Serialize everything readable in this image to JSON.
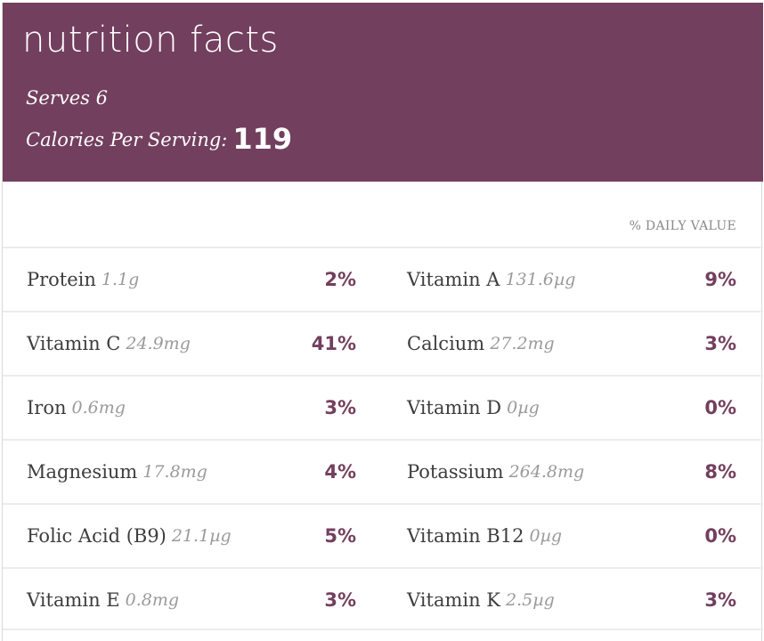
{
  "header": {
    "title": "nutrition facts",
    "serves": "Serves 6",
    "calories_label": "Calories Per Serving:",
    "calories_value": "119"
  },
  "daily_value_label": "% DAILY VALUE",
  "rows": [
    {
      "left": {
        "name": "Protein",
        "amount": "1.1g",
        "pct": "2%"
      },
      "right": {
        "name": "Vitamin A",
        "amount": "131.6µg",
        "pct": "9%"
      }
    },
    {
      "left": {
        "name": "Vitamin C",
        "amount": "24.9mg",
        "pct": "41%"
      },
      "right": {
        "name": "Calcium",
        "amount": "27.2mg",
        "pct": "3%"
      }
    },
    {
      "left": {
        "name": "Iron",
        "amount": "0.6mg",
        "pct": "3%"
      },
      "right": {
        "name": "Vitamin D",
        "amount": "0µg",
        "pct": "0%"
      }
    },
    {
      "left": {
        "name": "Magnesium",
        "amount": "17.8mg",
        "pct": "4%"
      },
      "right": {
        "name": "Potassium",
        "amount": "264.8mg",
        "pct": "8%"
      }
    },
    {
      "left": {
        "name": "Folic Acid (B9)",
        "amount": "21.1µg",
        "pct": "5%"
      },
      "right": {
        "name": "Vitamin B12",
        "amount": "0µg",
        "pct": "0%"
      }
    },
    {
      "left": {
        "name": "Vitamin E",
        "amount": "0.8mg",
        "pct": "3%"
      },
      "right": {
        "name": "Vitamin K",
        "amount": "2.5µg",
        "pct": "3%"
      }
    }
  ],
  "colors": {
    "accent": "#733f5e",
    "text": "#3d3d3d",
    "muted": "#9a9a9a"
  }
}
